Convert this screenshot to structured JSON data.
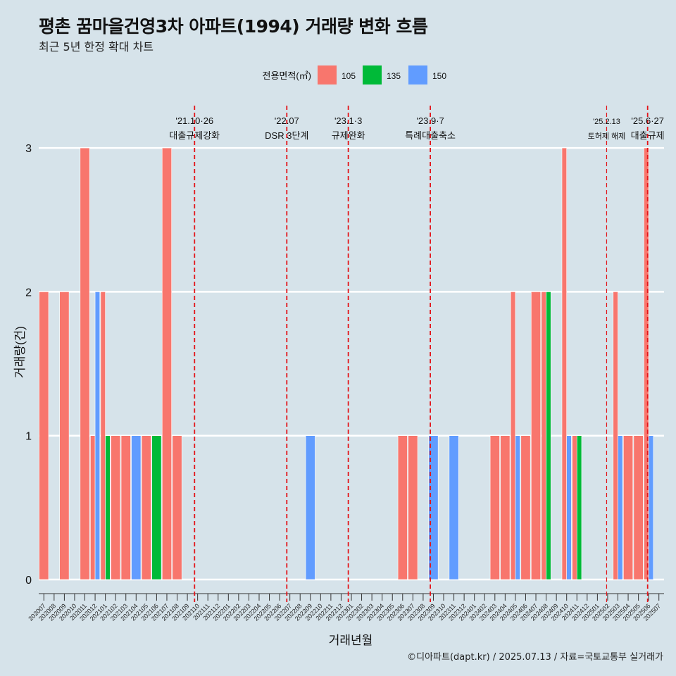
{
  "chart_data": {
    "type": "bar",
    "title": "평촌 꿈마을건영3차 아파트(1994) 거래량 변화 흐름",
    "subtitle": "최근 5년 한정 확대 차트",
    "xlabel": "거래년월",
    "ylabel": "거래량(건)",
    "ylim": [
      0,
      3
    ],
    "yticks": [
      "0",
      "1",
      "2",
      "3"
    ],
    "caption": "©디아파트(dapt.kr) / 2025.07.13 / 자료=국토교통부 실거래가",
    "legend": {
      "title": "전용면적(㎡)",
      "position": "top",
      "items": [
        {
          "label": "105",
          "color": "#f8766d"
        },
        {
          "label": "135",
          "color": "#00ba38"
        },
        {
          "label": "150",
          "color": "#619cff"
        }
      ]
    },
    "grid": true,
    "categories": [
      "202007",
      "202008",
      "202009",
      "202010",
      "202011",
      "202012",
      "202101",
      "202102",
      "202103",
      "202104",
      "202105",
      "202106",
      "202107",
      "202108",
      "202109",
      "202110",
      "202111",
      "202112",
      "202201",
      "202202",
      "202203",
      "202204",
      "202205",
      "202206",
      "202207",
      "202208",
      "202209",
      "202210",
      "202211",
      "202212",
      "202301",
      "202302",
      "202303",
      "202304",
      "202305",
      "202306",
      "202307",
      "202308",
      "202309",
      "202310",
      "202311",
      "202312",
      "202401",
      "202402",
      "202403",
      "202404",
      "202405",
      "202406",
      "202407",
      "202408",
      "202409",
      "202410",
      "202411",
      "202412",
      "202501",
      "202502",
      "202503",
      "202504",
      "202505",
      "202506",
      "202507"
    ],
    "bars": [
      {
        "x": "202007",
        "series": [
          {
            "name": "105",
            "value": 2
          }
        ]
      },
      {
        "x": "202009",
        "series": [
          {
            "name": "105",
            "value": 2
          }
        ]
      },
      {
        "x": "202011",
        "series": [
          {
            "name": "105",
            "value": 3
          }
        ]
      },
      {
        "x": "202012",
        "series": [
          {
            "name": "105",
            "value": 1
          },
          {
            "name": "150",
            "value": 2
          }
        ]
      },
      {
        "x": "202101",
        "series": [
          {
            "name": "105",
            "value": 2
          },
          {
            "name": "135",
            "value": 1
          }
        ]
      },
      {
        "x": "202102",
        "series": [
          {
            "name": "105",
            "value": 1
          }
        ]
      },
      {
        "x": "202103",
        "series": [
          {
            "name": "105",
            "value": 1
          }
        ]
      },
      {
        "x": "202104",
        "series": [
          {
            "name": "150",
            "value": 1
          }
        ]
      },
      {
        "x": "202105",
        "series": [
          {
            "name": "105",
            "value": 1
          }
        ]
      },
      {
        "x": "202106",
        "series": [
          {
            "name": "135",
            "value": 1
          }
        ]
      },
      {
        "x": "202107",
        "series": [
          {
            "name": "105",
            "value": 3
          }
        ]
      },
      {
        "x": "202108",
        "series": [
          {
            "name": "105",
            "value": 1
          }
        ]
      },
      {
        "x": "202209",
        "series": [
          {
            "name": "150",
            "value": 1
          }
        ]
      },
      {
        "x": "202306",
        "series": [
          {
            "name": "105",
            "value": 1
          }
        ]
      },
      {
        "x": "202307",
        "series": [
          {
            "name": "105",
            "value": 1
          }
        ]
      },
      {
        "x": "202309",
        "series": [
          {
            "name": "150",
            "value": 1
          }
        ]
      },
      {
        "x": "202311",
        "series": [
          {
            "name": "150",
            "value": 1
          }
        ]
      },
      {
        "x": "202403",
        "series": [
          {
            "name": "105",
            "value": 1
          }
        ]
      },
      {
        "x": "202404",
        "series": [
          {
            "name": "105",
            "value": 1
          }
        ]
      },
      {
        "x": "202405",
        "series": [
          {
            "name": "105",
            "value": 2
          },
          {
            "name": "150",
            "value": 1
          }
        ]
      },
      {
        "x": "202406",
        "series": [
          {
            "name": "105",
            "value": 1
          }
        ]
      },
      {
        "x": "202407",
        "series": [
          {
            "name": "105",
            "value": 2
          }
        ]
      },
      {
        "x": "202408",
        "series": [
          {
            "name": "105",
            "value": 2
          },
          {
            "name": "135",
            "value": 2
          }
        ]
      },
      {
        "x": "202410",
        "series": [
          {
            "name": "105",
            "value": 3
          },
          {
            "name": "150",
            "value": 1
          }
        ]
      },
      {
        "x": "202411",
        "series": [
          {
            "name": "105",
            "value": 1
          },
          {
            "name": "135",
            "value": 1
          }
        ]
      },
      {
        "x": "202503",
        "series": [
          {
            "name": "105",
            "value": 2
          },
          {
            "name": "150",
            "value": 1
          }
        ]
      },
      {
        "x": "202504",
        "series": [
          {
            "name": "105",
            "value": 1
          }
        ]
      },
      {
        "x": "202505",
        "series": [
          {
            "name": "105",
            "value": 1
          }
        ]
      },
      {
        "x": "202506",
        "series": [
          {
            "name": "105",
            "value": 3
          },
          {
            "name": "150",
            "value": 1
          }
        ]
      }
    ],
    "annotations": [
      {
        "x": 15.2,
        "date": "'21.10·26",
        "text": "대출규제강화"
      },
      {
        "x": 24.2,
        "date": "'22.07",
        "text": "DSR 3단계"
      },
      {
        "x": 30.2,
        "date": "'23.1·3",
        "text": "규제완화"
      },
      {
        "x": 38.2,
        "date": "'23.9·7",
        "text": "특례대출축소"
      },
      {
        "x": 55.4,
        "date": "'25.2.13",
        "text": "토허제 해제",
        "small": true
      },
      {
        "x": 59.4,
        "date": "'25.6·27",
        "text": "대출규제"
      }
    ],
    "line_color": "#e3151a"
  }
}
